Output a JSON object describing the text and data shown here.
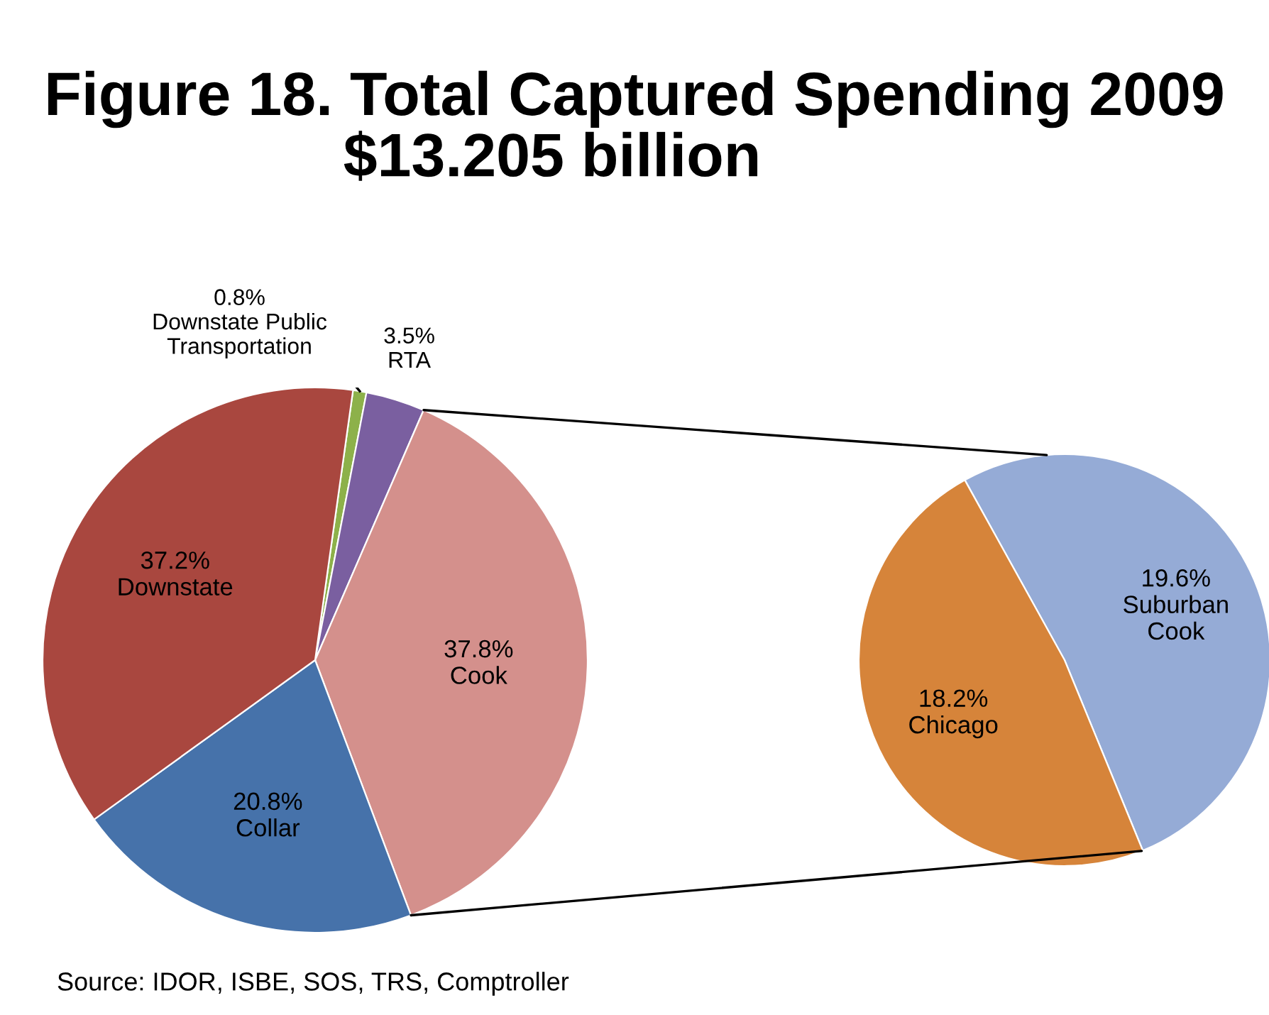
{
  "chart_data": [
    {
      "type": "pie",
      "title": "Figure 18. Total Captured Spending 2009",
      "subtitle": "$13.205 billion",
      "categories": [
        "Downstate Public Transportation",
        "RTA",
        "Cook",
        "Collar",
        "Downstate"
      ],
      "values": [
        0.8,
        3.5,
        37.8,
        20.8,
        37.2
      ],
      "value_labels": [
        "0.8%",
        "3.5%",
        "37.8%",
        "20.8%",
        "37.2%"
      ],
      "colors": [
        "#8db14a",
        "#7a5fa0",
        "#d4908c",
        "#4672aa",
        "#a9473f"
      ],
      "annotations": [
        "Source: IDOR, ISBE, SOS, TRS, Comptroller"
      ]
    },
    {
      "type": "pie",
      "categories": [
        "Suburban Cook",
        "Chicago"
      ],
      "values": [
        19.6,
        18.2
      ],
      "value_labels": [
        "19.6%",
        "18.2%"
      ],
      "colors": [
        "#95abd6",
        "#d6843a"
      ]
    }
  ]
}
